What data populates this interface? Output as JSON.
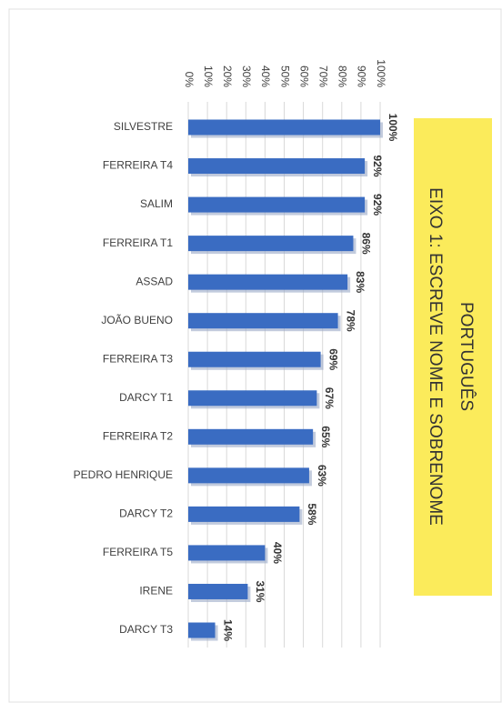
{
  "chart_data": {
    "type": "bar",
    "orientation": "horizontal",
    "title": "PORTUGUÊS",
    "subtitle": "EIXO 1: ESCREVE NOME E SOBRENOME",
    "categories": [
      "SILVESTRE",
      "FERREIRA T4",
      "SALIM",
      "FERREIRA T1",
      "ASSAD",
      "JOÃO BUENO",
      "FERREIRA T3",
      "DARCY T1",
      "FERREIRA T2",
      "PEDRO HENRIQUE",
      "DARCY T2",
      "FERREIRA T5",
      "IRENE",
      "DARCY T3"
    ],
    "values": [
      100,
      92,
      92,
      86,
      83,
      78,
      69,
      67,
      65,
      63,
      58,
      40,
      31,
      14
    ],
    "value_labels": [
      "100%",
      "92%",
      "92%",
      "86%",
      "83%",
      "78%",
      "69%",
      "67%",
      "65%",
      "63%",
      "58%",
      "40%",
      "31%",
      "14%"
    ],
    "color": "#3a6cc2",
    "xlim": [
      0,
      100
    ],
    "xticks": [
      {
        "value": 0,
        "label": "0%"
      },
      {
        "value": 10,
        "label": "10%"
      },
      {
        "value": 20,
        "label": "20%"
      },
      {
        "value": 30,
        "label": "30%"
      },
      {
        "value": 40,
        "label": "40%"
      },
      {
        "value": 50,
        "label": "50%"
      },
      {
        "value": 60,
        "label": "60%"
      },
      {
        "value": 70,
        "label": "70%"
      },
      {
        "value": 80,
        "label": "80%"
      },
      {
        "value": 90,
        "label": "90%"
      },
      {
        "value": 100,
        "label": "100%"
      }
    ],
    "grid": true
  }
}
